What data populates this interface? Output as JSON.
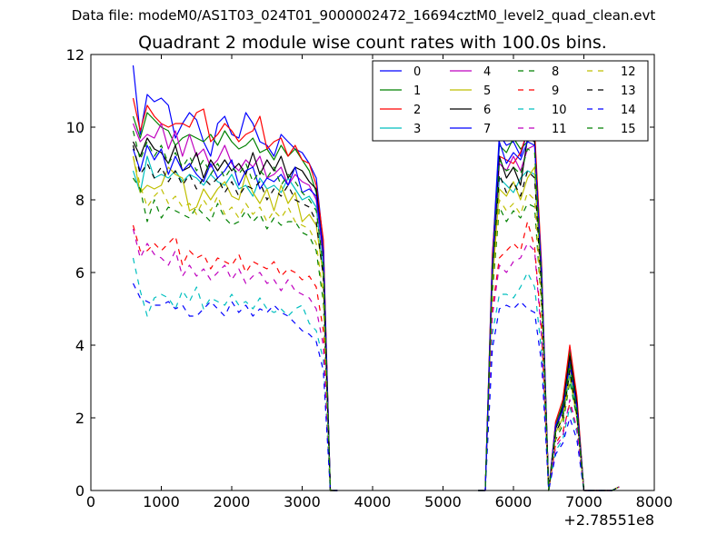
{
  "header": {
    "data_file": "Data file: modeM0/AS1T03_024T01_9000002472_16694cztM0_level2_quad_clean.evt"
  },
  "chart_data": {
    "type": "line",
    "title": "Quadrant 2 module wise count rates with 100.0s bins.",
    "xlabel": "",
    "ylabel": "",
    "x_offset_label": "+2.78551e8",
    "xlim": [
      0,
      8000
    ],
    "ylim": [
      0,
      12
    ],
    "x_ticks": [
      "0",
      "1000",
      "2000",
      "3000",
      "4000",
      "5000",
      "6000",
      "7000",
      "8000"
    ],
    "y_ticks": [
      "0",
      "2",
      "4",
      "6",
      "8",
      "10",
      "12"
    ],
    "grid": false,
    "legend_position": "top-right",
    "x_segments": [
      [
        600,
        700,
        800,
        900,
        1000,
        1100,
        1200,
        1300,
        1400,
        1500,
        1600,
        1700,
        1800,
        1900,
        2000,
        2100,
        2200,
        2300,
        2400,
        2500,
        2600,
        2700,
        2800,
        2900,
        3000,
        3100,
        3200,
        3300,
        3400,
        3500
      ],
      [
        5500,
        5600,
        5700,
        5800,
        5900,
        6000,
        6100,
        6200,
        6300,
        6400,
        6500,
        6600,
        6700,
        6800,
        6900,
        7000,
        7100,
        7200,
        7300,
        7400,
        7500
      ]
    ],
    "series": [
      {
        "name": "0",
        "color": "#0000ff",
        "dash": "solid",
        "segments": [
          [
            11.7,
            9.8,
            10.9,
            10.7,
            10.8,
            10.6,
            9.7,
            10.1,
            10.4,
            10.2,
            9.6,
            9.2,
            10.1,
            10.3,
            9.8,
            9.7,
            10.4,
            10.1,
            9.6,
            9.5,
            9.2,
            9.8,
            9.6,
            9.4,
            9.3,
            9.0,
            8.6,
            6.8,
            0.0,
            0.0
          ],
          [
            0.0,
            0.0,
            6.4,
            9.8,
            9.5,
            9.6,
            9.2,
            9.9,
            9.7,
            6.1,
            0.0,
            1.9,
            2.3,
            3.9,
            2.5,
            0.0,
            0.0,
            0.0,
            0.0,
            0.0,
            0.1
          ]
        ]
      },
      {
        "name": "1",
        "color": "#008000",
        "dash": "solid",
        "segments": [
          [
            10.3,
            9.7,
            10.4,
            10.2,
            10.0,
            9.9,
            9.5,
            9.7,
            9.8,
            9.7,
            9.6,
            9.8,
            9.5,
            9.9,
            9.6,
            9.4,
            9.5,
            9.7,
            9.3,
            9.4,
            9.1,
            9.5,
            9.2,
            9.4,
            9.1,
            8.8,
            8.2,
            6.6,
            0.0,
            0.0
          ],
          [
            0.0,
            0.0,
            6.3,
            9.5,
            9.3,
            9.7,
            9.4,
            9.6,
            9.8,
            6.0,
            0.0,
            1.8,
            2.4,
            3.8,
            2.4,
            0.0,
            0.0,
            0.0,
            0.0,
            0.0,
            0.1
          ]
        ]
      },
      {
        "name": "2",
        "color": "#ff0000",
        "dash": "solid",
        "segments": [
          [
            10.8,
            9.9,
            10.6,
            10.3,
            10.1,
            10.0,
            10.1,
            10.1,
            10.0,
            10.4,
            10.5,
            9.6,
            9.8,
            10.1,
            9.9,
            9.6,
            9.8,
            9.9,
            10.3,
            9.4,
            9.6,
            9.7,
            9.2,
            9.5,
            9.1,
            9.0,
            8.4,
            6.9,
            0.0,
            0.0
          ],
          [
            0.0,
            0.0,
            6.5,
            9.2,
            9.1,
            9.0,
            9.3,
            9.9,
            9.9,
            6.2,
            0.0,
            1.9,
            2.5,
            4.0,
            2.6,
            0.0,
            0.0,
            0.0,
            0.0,
            0.0,
            0.1
          ]
        ]
      },
      {
        "name": "3",
        "color": "#00bfbf",
        "dash": "solid",
        "segments": [
          [
            8.8,
            8.2,
            9.2,
            8.6,
            8.7,
            8.6,
            8.8,
            8.5,
            8.7,
            8.6,
            8.4,
            8.7,
            8.5,
            8.4,
            8.7,
            8.3,
            8.4,
            8.1,
            8.6,
            8.3,
            8.4,
            8.2,
            8.6,
            8.3,
            8.0,
            8.1,
            7.8,
            6.0,
            0.0,
            0.0
          ],
          [
            0.0,
            0.0,
            5.8,
            8.6,
            8.4,
            8.2,
            8.6,
            8.8,
            8.7,
            5.6,
            0.0,
            1.6,
            2.0,
            3.2,
            2.1,
            0.0,
            0.0,
            0.0,
            0.0,
            0.0,
            0.1
          ]
        ]
      },
      {
        "name": "4",
        "color": "#bf00bf",
        "dash": "solid",
        "segments": [
          [
            10.1,
            9.6,
            9.8,
            9.7,
            10.1,
            9.4,
            9.9,
            9.2,
            9.8,
            9.2,
            9.4,
            8.9,
            9.1,
            9.5,
            9.0,
            8.8,
            9.1,
            8.9,
            9.2,
            8.6,
            8.7,
            8.9,
            8.4,
            8.7,
            8.5,
            8.4,
            8.0,
            6.4,
            0.0,
            0.0
          ],
          [
            0.0,
            0.0,
            6.0,
            9.0,
            8.8,
            9.2,
            8.8,
            9.4,
            9.5,
            5.9,
            0.0,
            1.7,
            2.2,
            3.6,
            2.3,
            0.0,
            0.0,
            0.0,
            0.0,
            0.0,
            0.1
          ]
        ]
      },
      {
        "name": "5",
        "color": "#bfbf00",
        "dash": "solid",
        "segments": [
          [
            9.2,
            8.2,
            8.4,
            8.3,
            8.4,
            8.9,
            8.7,
            8.6,
            7.7,
            7.8,
            8.3,
            8.0,
            8.3,
            8.5,
            8.1,
            8.0,
            8.7,
            8.2,
            7.9,
            8.3,
            7.7,
            8.4,
            7.9,
            8.2,
            7.4,
            7.6,
            7.3,
            5.9,
            0.0,
            0.0
          ],
          [
            0.0,
            0.0,
            5.7,
            8.3,
            8.1,
            8.5,
            8.0,
            8.6,
            8.9,
            5.6,
            0.0,
            1.6,
            2.0,
            3.4,
            2.2,
            0.0,
            0.0,
            0.0,
            0.0,
            0.0,
            0.1
          ]
        ]
      },
      {
        "name": "6",
        "color": "#000000",
        "dash": "solid",
        "segments": [
          [
            9.6,
            9.2,
            9.7,
            9.4,
            9.3,
            9.0,
            9.5,
            8.8,
            8.9,
            9.3,
            8.6,
            9.1,
            8.8,
            9.1,
            8.8,
            9.0,
            8.7,
            9.3,
            8.7,
            9.1,
            8.8,
            9.2,
            8.6,
            8.9,
            8.8,
            8.5,
            8.3,
            6.5,
            0.0,
            0.0
          ],
          [
            0.0,
            0.0,
            6.1,
            9.2,
            8.6,
            8.9,
            8.4,
            9.7,
            9.6,
            5.8,
            0.0,
            1.7,
            2.3,
            3.7,
            2.4,
            0.0,
            0.0,
            0.0,
            0.0,
            0.0,
            0.1
          ]
        ]
      },
      {
        "name": "7",
        "color": "#0000ff",
        "dash": "solid",
        "segments": [
          [
            9.4,
            8.8,
            9.5,
            9.1,
            9.4,
            8.7,
            9.2,
            8.8,
            9.0,
            8.7,
            8.5,
            9.0,
            8.6,
            8.8,
            9.1,
            8.4,
            8.8,
            8.9,
            8.3,
            8.6,
            8.5,
            8.7,
            8.4,
            8.9,
            8.2,
            8.3,
            8.1,
            6.6,
            0.0,
            0.0
          ],
          [
            0.0,
            0.0,
            6.2,
            9.6,
            9.0,
            9.3,
            9.1,
            9.6,
            9.5,
            6.0,
            0.0,
            1.8,
            2.2,
            3.5,
            2.3,
            0.0,
            0.0,
            0.0,
            0.0,
            0.0,
            0.1
          ]
        ]
      },
      {
        "name": "8",
        "color": "#008000",
        "dash": "dashed",
        "segments": [
          [
            8.6,
            8.3,
            7.4,
            8.0,
            7.5,
            7.8,
            7.7,
            7.6,
            7.5,
            7.8,
            7.6,
            7.4,
            7.9,
            7.5,
            7.3,
            7.4,
            7.7,
            7.4,
            7.6,
            7.2,
            7.5,
            7.3,
            7.4,
            7.4,
            7.1,
            7.0,
            6.6,
            5.2,
            0.0,
            0.0
          ],
          [
            0.0,
            0.0,
            5.4,
            7.8,
            7.4,
            7.7,
            7.5,
            7.9,
            7.8,
            5.0,
            0.0,
            1.4,
            1.8,
            3.0,
            2.0,
            0.0,
            0.0,
            0.0,
            0.0,
            0.0,
            0.1
          ]
        ]
      },
      {
        "name": "9",
        "color": "#ff0000",
        "dash": "dashed",
        "segments": [
          [
            7.3,
            6.6,
            6.6,
            6.8,
            6.6,
            6.8,
            7.0,
            6.2,
            6.6,
            6.4,
            6.5,
            6.1,
            6.4,
            6.3,
            6.2,
            6.5,
            6.0,
            6.3,
            6.2,
            6.1,
            6.3,
            5.9,
            6.1,
            6.0,
            5.8,
            5.9,
            5.6,
            4.4,
            0.0,
            0.0
          ],
          [
            0.0,
            0.0,
            5.0,
            6.4,
            6.6,
            6.8,
            6.6,
            7.4,
            6.7,
            4.4,
            0.0,
            1.3,
            1.6,
            2.4,
            1.7,
            0.0,
            0.0,
            0.0,
            0.0,
            0.0,
            0.1
          ]
        ]
      },
      {
        "name": "10",
        "color": "#00bfbf",
        "dash": "dashed",
        "segments": [
          [
            6.4,
            5.5,
            4.8,
            5.3,
            5.4,
            5.3,
            5.0,
            5.5,
            5.2,
            5.6,
            5.0,
            5.3,
            5.2,
            5.1,
            5.4,
            5.1,
            5.2,
            5.0,
            5.3,
            5.0,
            4.9,
            5.0,
            4.8,
            5.0,
            5.1,
            4.6,
            4.4,
            3.6,
            0.0,
            0.0
          ],
          [
            0.0,
            0.0,
            4.3,
            5.4,
            5.4,
            5.3,
            5.6,
            6.0,
            5.6,
            3.8,
            0.0,
            1.1,
            1.4,
            2.3,
            1.6,
            0.0,
            0.0,
            0.0,
            0.0,
            0.0,
            0.1
          ]
        ]
      },
      {
        "name": "11",
        "color": "#bf00bf",
        "dash": "dashed",
        "segments": [
          [
            7.2,
            6.4,
            6.8,
            6.5,
            6.4,
            6.2,
            6.6,
            5.9,
            6.2,
            5.9,
            6.1,
            5.8,
            6.0,
            6.2,
            5.8,
            6.1,
            5.7,
            5.9,
            6.0,
            5.7,
            5.8,
            5.5,
            5.8,
            5.5,
            5.4,
            5.3,
            5.0,
            4.0,
            0.0,
            0.0
          ],
          [
            0.0,
            0.0,
            4.8,
            6.2,
            6.0,
            6.3,
            6.4,
            6.8,
            6.6,
            4.2,
            0.0,
            1.2,
            1.5,
            2.5,
            1.7,
            0.0,
            0.0,
            0.0,
            0.0,
            0.0,
            0.1
          ]
        ]
      },
      {
        "name": "12",
        "color": "#bfbf00",
        "dash": "dashed",
        "segments": [
          [
            9.2,
            8.4,
            7.8,
            8.1,
            8.3,
            7.9,
            8.1,
            7.8,
            7.9,
            7.6,
            8.0,
            7.7,
            8.1,
            7.6,
            7.8,
            7.5,
            7.9,
            7.6,
            7.8,
            7.4,
            7.7,
            7.5,
            7.8,
            7.4,
            7.3,
            7.2,
            6.8,
            5.4,
            0.0,
            0.0
          ],
          [
            0.0,
            0.0,
            5.6,
            8.0,
            7.7,
            7.9,
            7.6,
            8.2,
            8.0,
            5.1,
            0.0,
            1.5,
            1.9,
            3.1,
            2.0,
            0.0,
            0.0,
            0.0,
            0.0,
            0.0,
            0.1
          ]
        ]
      },
      {
        "name": "13",
        "color": "#000000",
        "dash": "dashed",
        "segments": [
          [
            9.5,
            8.7,
            9.0,
            8.6,
            8.9,
            8.5,
            8.8,
            8.4,
            8.7,
            8.3,
            8.6,
            8.4,
            8.6,
            8.2,
            8.5,
            8.1,
            8.4,
            8.3,
            8.5,
            8.0,
            8.3,
            8.1,
            8.4,
            8.0,
            7.9,
            7.8,
            7.4,
            5.9,
            0.0,
            0.0
          ],
          [
            0.0,
            0.0,
            5.9,
            8.7,
            8.2,
            8.5,
            8.1,
            8.8,
            8.6,
            5.5,
            0.0,
            1.6,
            2.0,
            3.3,
            2.1,
            0.0,
            0.0,
            0.0,
            0.0,
            0.0,
            0.1
          ]
        ]
      },
      {
        "name": "14",
        "color": "#0000ff",
        "dash": "dashed",
        "segments": [
          [
            5.7,
            5.3,
            5.2,
            5.1,
            5.1,
            5.2,
            5.0,
            5.1,
            4.8,
            4.8,
            5.0,
            5.2,
            5.0,
            4.8,
            5.2,
            4.9,
            5.1,
            4.8,
            5.0,
            4.9,
            5.1,
            4.9,
            4.8,
            4.6,
            4.4,
            4.3,
            4.1,
            3.3,
            0.0,
            0.0
          ],
          [
            0.0,
            0.0,
            3.9,
            5.0,
            5.1,
            5.0,
            5.2,
            5.0,
            4.9,
            3.5,
            0.0,
            1.0,
            1.3,
            2.0,
            1.4,
            0.0,
            0.0,
            0.0,
            0.0,
            0.0,
            0.1
          ]
        ]
      },
      {
        "name": "15",
        "color": "#008000",
        "dash": "dashed",
        "segments": [
          [
            9.9,
            9.1,
            9.6,
            9.2,
            9.5,
            9.0,
            9.3,
            8.9,
            9.2,
            8.8,
            9.1,
            8.7,
            9.0,
            8.6,
            8.9,
            8.7,
            9.0,
            8.5,
            8.8,
            8.6,
            8.9,
            8.4,
            8.7,
            8.5,
            8.2,
            8.0,
            7.7,
            6.2,
            0.0,
            0.0
          ],
          [
            0.0,
            0.0,
            6.0,
            9.1,
            8.8,
            8.9,
            8.7,
            9.4,
            9.3,
            5.8,
            0.0,
            1.7,
            2.1,
            3.5,
            2.2,
            0.0,
            0.0,
            0.0,
            0.0,
            0.0,
            0.1
          ]
        ]
      }
    ]
  }
}
